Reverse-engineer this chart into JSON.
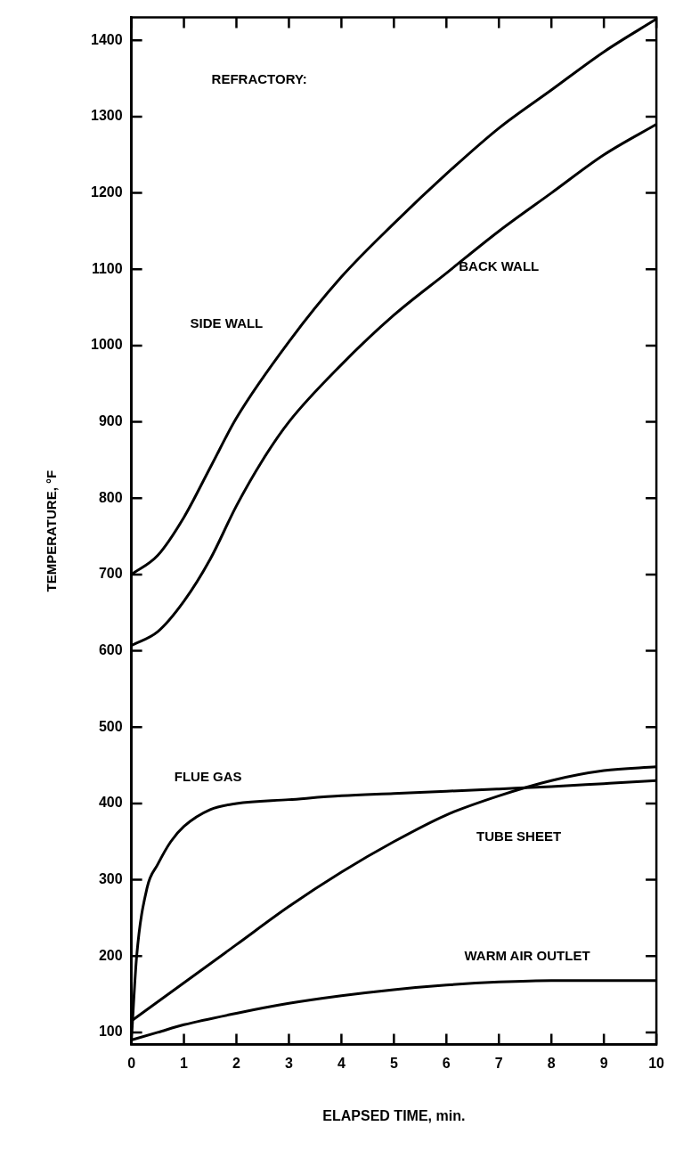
{
  "chart_data": {
    "type": "line",
    "xlabel": "ELAPSED TIME, min.",
    "ylabel": "TEMPERATURE, °F",
    "xlim": [
      0,
      10
    ],
    "xticks": [
      0,
      1,
      2,
      3,
      4,
      5,
      6,
      7,
      8,
      9,
      10
    ],
    "ylim": [
      84,
      1430
    ],
    "yticks": [
      100,
      200,
      300,
      400,
      500,
      600,
      700,
      800,
      900,
      1000,
      1100,
      1200,
      1300,
      1400
    ],
    "marker": "none",
    "line_style": "solid",
    "legend": false,
    "annotations": [
      "REFRACTORY:"
    ],
    "series": [
      {
        "name": "SIDE WALL",
        "color": "#000000",
        "x": [
          0,
          0.5,
          1,
          1.5,
          2,
          3,
          4,
          5,
          6,
          7,
          8,
          9,
          10
        ],
        "values": [
          700,
          725,
          775,
          840,
          905,
          1005,
          1090,
          1160,
          1225,
          1285,
          1335,
          1385,
          1428
        ]
      },
      {
        "name": "BACK WALL",
        "color": "#000000",
        "x": [
          0,
          0.5,
          1,
          1.5,
          2,
          2.5,
          3,
          4,
          5,
          6,
          7,
          8,
          9,
          10
        ],
        "values": [
          607,
          625,
          665,
          720,
          790,
          850,
          900,
          975,
          1040,
          1095,
          1150,
          1200,
          1250,
          1290
        ]
      },
      {
        "name": "FLUE GAS",
        "color": "#000000",
        "x": [
          0,
          0.1,
          0.3,
          0.5,
          0.75,
          1,
          1.5,
          2,
          3,
          4,
          5,
          6,
          7,
          8,
          9,
          10
        ],
        "values": [
          90,
          200,
          290,
          320,
          350,
          370,
          392,
          400,
          405,
          410,
          413,
          416,
          419,
          422,
          426,
          430
        ]
      },
      {
        "name": "TUBE SHEET",
        "color": "#000000",
        "x": [
          0,
          1,
          2,
          3,
          4,
          5,
          6,
          7,
          8,
          9,
          10
        ],
        "values": [
          115,
          165,
          215,
          265,
          310,
          350,
          385,
          410,
          430,
          443,
          448
        ]
      },
      {
        "name": "WARM AIR OUTLET",
        "color": "#000000",
        "x": [
          0,
          0.5,
          1,
          2,
          3,
          4,
          5,
          6,
          7,
          8,
          9,
          10
        ],
        "values": [
          90,
          100,
          110,
          125,
          138,
          148,
          156,
          162,
          166,
          168,
          168,
          168
        ]
      }
    ]
  }
}
